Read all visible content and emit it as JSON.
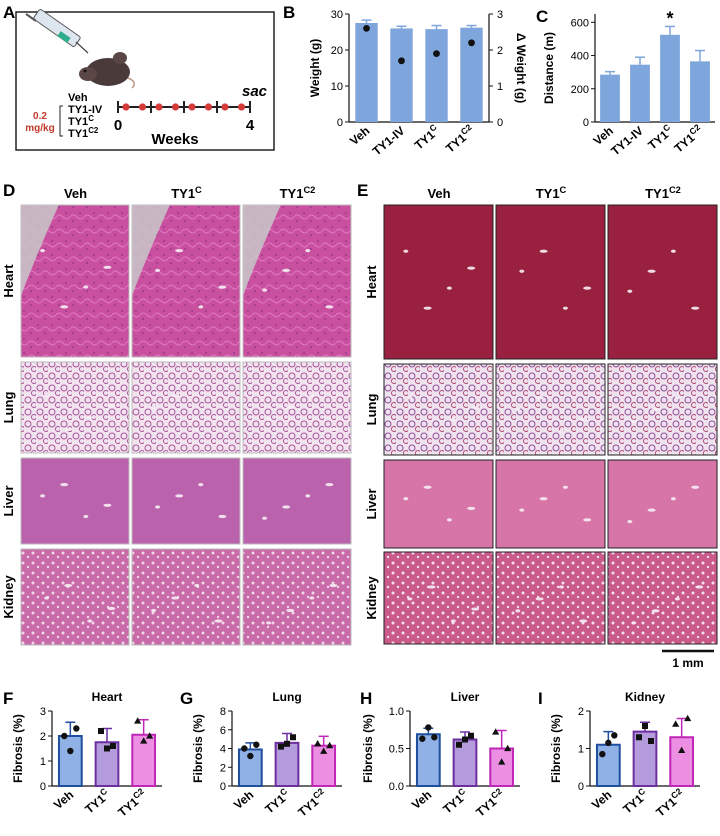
{
  "panel_letters": [
    "A",
    "B",
    "C",
    "D",
    "E",
    "F",
    "G",
    "H",
    "I"
  ],
  "panel_a": {
    "groups": [
      "Veh",
      "TY1-IV",
      "TY1C",
      "TY1C2"
    ],
    "dose": "0.2",
    "dose_unit": "mg/kg",
    "sac": "sac",
    "week_start": "0",
    "week_end": "4",
    "xlabel": "Weeks"
  },
  "histology_d": {
    "columns": [
      "Veh",
      "TY1C",
      "TY1C2"
    ],
    "rows": [
      "Heart",
      "Lung",
      "Liver",
      "Kidney"
    ]
  },
  "histology_e": {
    "columns": [
      "Veh",
      "TY1C",
      "TY1C2"
    ],
    "rows": [
      "Heart",
      "Lung",
      "Liver",
      "Kidney"
    ]
  },
  "scale_bar": "1 mm",
  "colors": {
    "bar_blue": "#7fa6dc",
    "he_pink": "#d05fb6",
    "trichrome": "#9a2040",
    "veh": "#1f4e9c",
    "ty1c": "#6b2fa0",
    "ty1c2": "#c026b8"
  },
  "chart_data": [
    {
      "type": "bar",
      "panel": "B",
      "categories": [
        "Veh",
        "TY1-IV",
        "TY1C",
        "TY1C2"
      ],
      "values": [
        27.5,
        26,
        25.8,
        26.2
      ],
      "errors": [
        0.8,
        0.6,
        1.0,
        0.6
      ],
      "ylabel": "Weight (g)",
      "ylim": [
        0,
        30
      ],
      "yticks": [
        0,
        10,
        20,
        30
      ],
      "y2label": "Δ Weight (g)",
      "y2lim": [
        0,
        3
      ],
      "y2ticks": [
        0,
        1,
        2,
        3
      ],
      "delta_values": [
        2.6,
        1.7,
        1.9,
        2.2
      ]
    },
    {
      "type": "bar",
      "panel": "C",
      "categories": [
        "Veh",
        "TY1-IV",
        "TY1C",
        "TY1C2"
      ],
      "values": [
        285,
        345,
        525,
        365
      ],
      "errors": [
        18,
        45,
        50,
        65
      ],
      "ylabel": "Distance (m)",
      "ylim": [
        0,
        650
      ],
      "yticks": [
        0,
        200,
        400,
        600
      ],
      "annotation": "*"
    },
    {
      "type": "bar",
      "panel": "F",
      "title": "Heart",
      "categories": [
        "Veh",
        "TY1C",
        "TY1C2"
      ],
      "values": [
        2.0,
        1.75,
        2.05
      ],
      "errors": [
        0.55,
        0.55,
        0.6
      ],
      "points": [
        [
          2.0,
          1.4,
          2.3
        ],
        [
          2.2,
          1.5,
          1.6
        ],
        [
          2.6,
          1.8,
          2.0
        ]
      ],
      "ylabel": "Fibrosis (%)",
      "ylim": [
        0,
        3
      ],
      "yticks": [
        0,
        1,
        2,
        3
      ]
    },
    {
      "type": "bar",
      "panel": "G",
      "title": "Lung",
      "categories": [
        "Veh",
        "TY1C",
        "TY1C2"
      ],
      "values": [
        3.9,
        4.6,
        4.3
      ],
      "errors": [
        0.7,
        1.0,
        1.0
      ],
      "points": [
        [
          4.0,
          3.2,
          4.4
        ],
        [
          4.2,
          4.5,
          5.2
        ],
        [
          4.5,
          3.7,
          4.3
        ]
      ],
      "ylabel": "Fibrosis (%)",
      "ylim": [
        0,
        8
      ],
      "yticks": [
        0,
        2,
        4,
        6,
        8
      ]
    },
    {
      "type": "bar",
      "panel": "H",
      "title": "Liver",
      "categories": [
        "Veh",
        "TY1C",
        "TY1C2"
      ],
      "values": [
        0.69,
        0.62,
        0.5
      ],
      "errors": [
        0.08,
        0.1,
        0.24
      ],
      "points": [
        [
          0.63,
          0.78,
          0.65
        ],
        [
          0.55,
          0.62,
          0.67
        ],
        [
          0.72,
          0.32,
          0.5
        ]
      ],
      "ylabel": "Fibrosis (%)",
      "ylim": [
        0,
        1.0
      ],
      "yticks": [
        0.0,
        0.5,
        1.0
      ],
      "yticklabels": [
        "0.0",
        "0.5",
        "1.0"
      ]
    },
    {
      "type": "bar",
      "panel": "I",
      "title": "Kidney",
      "categories": [
        "Veh",
        "TY1C",
        "TY1C2"
      ],
      "values": [
        1.1,
        1.45,
        1.3
      ],
      "errors": [
        0.35,
        0.25,
        0.5
      ],
      "points": [
        [
          0.85,
          1.15,
          1.35
        ],
        [
          1.3,
          1.6,
          1.2
        ],
        [
          1.65,
          0.95,
          1.8
        ]
      ],
      "ylabel": "Fibrosis (%)",
      "ylim": [
        0,
        2
      ],
      "yticks": [
        0,
        1,
        2
      ]
    }
  ]
}
